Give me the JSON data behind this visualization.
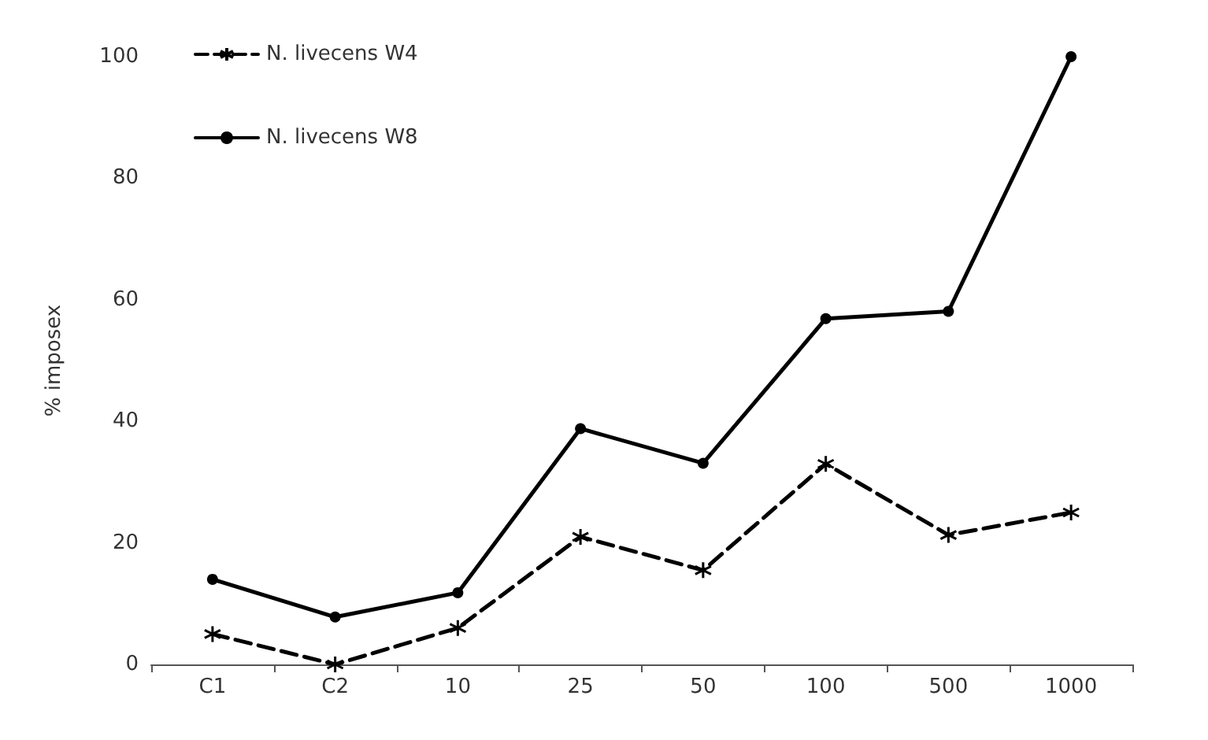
{
  "chart_data": {
    "type": "line",
    "ylabel": "% imposex",
    "categories": [
      "C1",
      "C2",
      "10",
      "25",
      "50",
      "100",
      "500",
      "1000"
    ],
    "series": [
      {
        "name": "N. livecens W4",
        "color": "#000000",
        "marker": "cross",
        "line_style": "dashed",
        "values": [
          5,
          0,
          6,
          21,
          15.5,
          33,
          21.3,
          25
        ]
      },
      {
        "name": "N. livecens W8",
        "color": "#000000",
        "marker": "circle",
        "line_style": "solid",
        "values": [
          14,
          7.8,
          11.8,
          38.8,
          33.1,
          56.9,
          58.1,
          100
        ]
      }
    ],
    "ylim": [
      0,
      100
    ],
    "yticks": [
      0,
      20,
      40,
      60,
      80,
      100
    ],
    "grid": false,
    "legend": "top left"
  }
}
